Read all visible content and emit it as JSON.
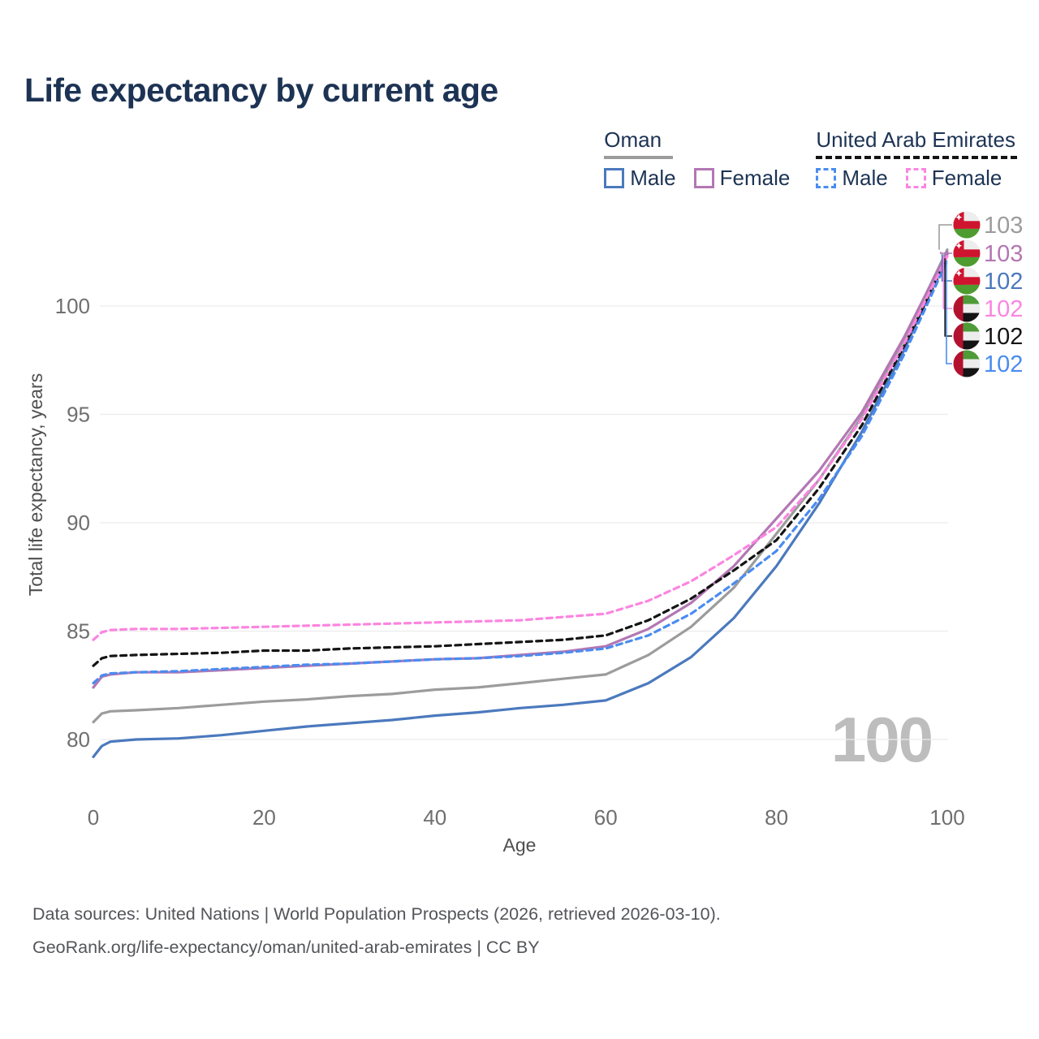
{
  "title": "Life expectancy by current age",
  "legend": {
    "groups": [
      {
        "country": "Oman",
        "line_style": "solid",
        "underline_color": "#9c9c9c",
        "items": [
          {
            "label": "Male",
            "color": "#4b79bd"
          },
          {
            "label": "Female",
            "color": "#b377b3"
          }
        ]
      },
      {
        "country": "United Arab Emirates",
        "line_style": "dashed",
        "underline_color": "#141414",
        "items": [
          {
            "label": "Male",
            "color": "#4a8cf0"
          },
          {
            "label": "Female",
            "color": "#fb85e0"
          }
        ]
      }
    ]
  },
  "watermark": "100",
  "end_labels": [
    {
      "value": "103",
      "color": "#9c9c9c",
      "flag": "oman",
      "series": "oman-total"
    },
    {
      "value": "103",
      "color": "#b377b3",
      "flag": "oman",
      "series": "oman-female"
    },
    {
      "value": "102",
      "color": "#4b79bd",
      "flag": "oman",
      "series": "oman-male"
    },
    {
      "value": "102",
      "color": "#fb85e0",
      "flag": "uae",
      "series": "uae-female"
    },
    {
      "value": "102",
      "color": "#141414",
      "flag": "uae",
      "series": "uae-total"
    },
    {
      "value": "102",
      "color": "#4a8cf0",
      "flag": "uae",
      "series": "uae-male"
    }
  ],
  "footer": {
    "line1": "Data sources: United Nations | World Population Prospects (2026, retrieved 2026-03-10).",
    "line2": "GeoRank.org/life-expectancy/oman/united-arab-emirates | CC BY"
  },
  "chart_data": {
    "type": "line",
    "title": "Life expectancy by current age",
    "xlabel": "Age",
    "ylabel": "Total life expectancy, years",
    "xlim": [
      0,
      100
    ],
    "ylim": [
      78.5,
      103.5
    ],
    "xticks": [
      0,
      20,
      40,
      60,
      80,
      100
    ],
    "yticks": [
      80,
      85,
      90,
      95,
      100
    ],
    "grid": "horizontal",
    "legend_position": "top-right",
    "x": [
      0,
      1,
      2,
      5,
      10,
      15,
      20,
      25,
      30,
      35,
      40,
      45,
      50,
      55,
      60,
      65,
      70,
      75,
      80,
      85,
      90,
      95,
      100
    ],
    "series": [
      {
        "id": "oman-total",
        "name": "Oman Total",
        "country": "Oman",
        "sex": "Total",
        "color": "#9c9c9c",
        "dash": false,
        "values": [
          80.8,
          81.2,
          81.3,
          81.35,
          81.45,
          81.6,
          81.75,
          81.85,
          82.0,
          82.1,
          82.3,
          82.4,
          82.6,
          82.8,
          83.0,
          83.9,
          85.2,
          87.0,
          89.5,
          92.0,
          94.9,
          98.5,
          102.6
        ]
      },
      {
        "id": "oman-male",
        "name": "Oman Male",
        "country": "Oman",
        "sex": "Male",
        "color": "#4b79bd",
        "dash": false,
        "values": [
          79.2,
          79.7,
          79.9,
          80.0,
          80.05,
          80.2,
          80.4,
          80.6,
          80.75,
          80.9,
          81.1,
          81.25,
          81.45,
          81.6,
          81.8,
          82.6,
          83.8,
          85.6,
          88.0,
          90.9,
          94.2,
          98.0,
          102.4
        ]
      },
      {
        "id": "oman-female",
        "name": "Oman Female",
        "country": "Oman",
        "sex": "Female",
        "color": "#b377b3",
        "dash": false,
        "values": [
          82.4,
          82.9,
          83.0,
          83.1,
          83.1,
          83.2,
          83.3,
          83.4,
          83.5,
          83.6,
          83.7,
          83.75,
          83.9,
          84.05,
          84.3,
          85.1,
          86.3,
          88.0,
          90.2,
          92.4,
          95.1,
          98.6,
          102.5
        ]
      },
      {
        "id": "uae-total",
        "name": "United Arab Emirates Total",
        "country": "United Arab Emirates",
        "sex": "Total",
        "color": "#141414",
        "dash": true,
        "values": [
          83.4,
          83.75,
          83.85,
          83.9,
          83.95,
          84.0,
          84.1,
          84.1,
          84.2,
          84.25,
          84.3,
          84.4,
          84.5,
          84.6,
          84.8,
          85.5,
          86.5,
          87.8,
          89.2,
          91.6,
          94.5,
          98.2,
          102.2
        ]
      },
      {
        "id": "uae-male",
        "name": "United Arab Emirates Male",
        "country": "United Arab Emirates",
        "sex": "Male",
        "color": "#4a8cf0",
        "dash": true,
        "values": [
          82.6,
          82.95,
          83.05,
          83.1,
          83.15,
          83.25,
          83.35,
          83.45,
          83.5,
          83.6,
          83.7,
          83.75,
          83.85,
          84.0,
          84.2,
          84.8,
          85.8,
          87.2,
          88.7,
          91.1,
          94.0,
          97.8,
          102.1
        ]
      },
      {
        "id": "uae-female",
        "name": "United Arab Emirates Female",
        "country": "United Arab Emirates",
        "sex": "Female",
        "color": "#fb85e0",
        "dash": true,
        "values": [
          84.6,
          84.95,
          85.05,
          85.1,
          85.1,
          85.15,
          85.2,
          85.25,
          85.3,
          85.35,
          85.4,
          85.45,
          85.5,
          85.65,
          85.8,
          86.4,
          87.3,
          88.5,
          89.8,
          92.0,
          94.8,
          98.3,
          102.3
        ]
      }
    ]
  }
}
